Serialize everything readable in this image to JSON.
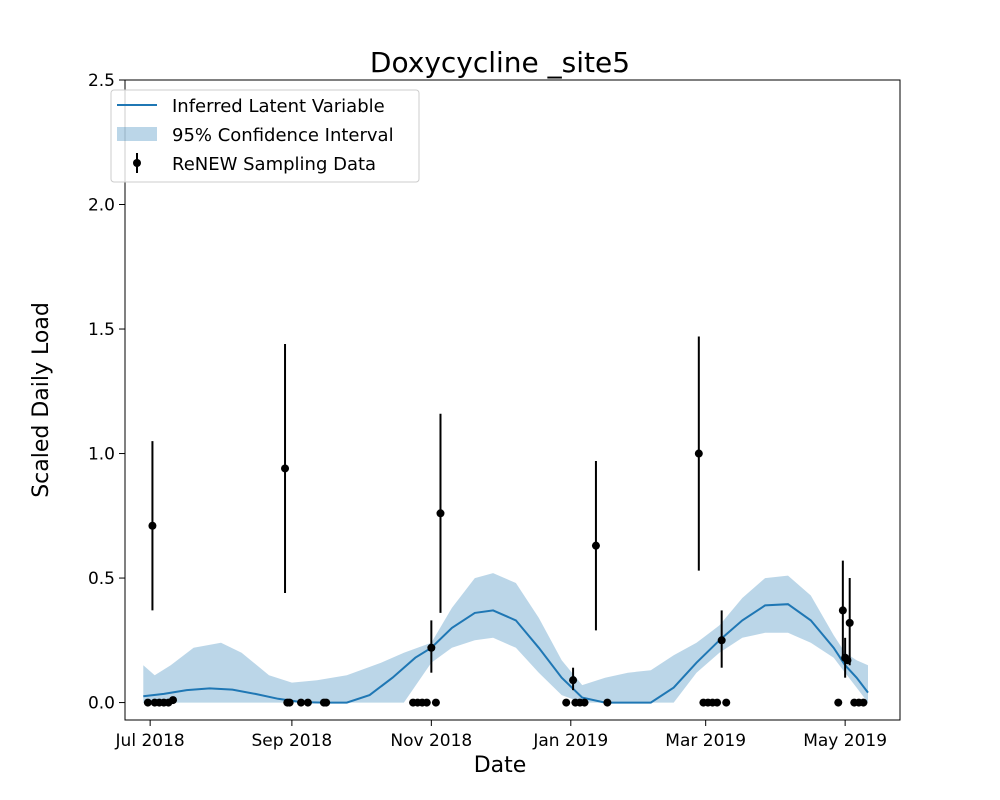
{
  "chart_data": {
    "type": "line",
    "title": "Doxycycline _site5",
    "xlabel": "Date",
    "ylabel": "Scaled Daily Load",
    "xlim": [
      "2018-06-20",
      "2019-05-25"
    ],
    "ylim": [
      -0.07,
      2.5
    ],
    "x_ticks": [
      {
        "date": "2018-07-01",
        "label": "Jul 2018"
      },
      {
        "date": "2018-09-01",
        "label": "Sep 2018"
      },
      {
        "date": "2018-11-01",
        "label": "Nov 2018"
      },
      {
        "date": "2019-01-01",
        "label": "Jan 2019"
      },
      {
        "date": "2019-03-01",
        "label": "Mar 2019"
      },
      {
        "date": "2019-05-01",
        "label": "May 2019"
      }
    ],
    "y_ticks": [
      "0.0",
      "0.5",
      "1.0",
      "1.5",
      "2.0",
      "2.5"
    ],
    "legend_position": "top-left",
    "grid": false,
    "series": [
      {
        "name": "Inferred Latent Variable",
        "kind": "line",
        "color": "#1f77b4",
        "x": [
          "2018-06-28",
          "2018-07-07",
          "2018-07-17",
          "2018-07-27",
          "2018-08-06",
          "2018-08-16",
          "2018-08-26",
          "2018-09-05",
          "2018-09-15",
          "2018-09-25",
          "2018-10-05",
          "2018-10-15",
          "2018-10-25",
          "2018-11-01",
          "2018-11-10",
          "2018-11-20",
          "2018-11-28",
          "2018-12-08",
          "2018-12-18",
          "2018-12-28",
          "2019-01-06",
          "2019-01-16",
          "2019-01-26",
          "2019-02-05",
          "2019-02-15",
          "2019-02-25",
          "2019-03-07",
          "2019-03-17",
          "2019-03-27",
          "2019-04-06",
          "2019-04-16",
          "2019-04-26",
          "2019-05-01",
          "2019-05-06",
          "2019-05-11"
        ],
        "y": [
          0.025,
          0.035,
          0.05,
          0.057,
          0.052,
          0.035,
          0.015,
          0.002,
          0.0,
          0.0,
          0.03,
          0.1,
          0.18,
          0.22,
          0.3,
          0.36,
          0.37,
          0.33,
          0.22,
          0.1,
          0.02,
          0.0,
          0.0,
          0.0,
          0.06,
          0.16,
          0.25,
          0.33,
          0.39,
          0.395,
          0.33,
          0.22,
          0.15,
          0.1,
          0.04
        ]
      },
      {
        "name": "95% Confidence Interval",
        "kind": "band",
        "color": "#1f77b4",
        "opacity": 0.3,
        "x": [
          "2018-06-28",
          "2018-07-03",
          "2018-07-10",
          "2018-07-20",
          "2018-08-01",
          "2018-08-10",
          "2018-08-22",
          "2018-09-01",
          "2018-09-12",
          "2018-09-25",
          "2018-10-01",
          "2018-10-10",
          "2018-10-20",
          "2018-11-01",
          "2018-11-10",
          "2018-11-20",
          "2018-11-28",
          "2018-12-08",
          "2018-12-18",
          "2018-12-28",
          "2019-01-06",
          "2019-01-16",
          "2019-01-26",
          "2019-02-05",
          "2019-02-15",
          "2019-02-25",
          "2019-03-07",
          "2019-03-17",
          "2019-03-27",
          "2019-04-06",
          "2019-04-16",
          "2019-04-26",
          "2019-05-01",
          "2019-05-06",
          "2019-05-11"
        ],
        "upper": [
          0.15,
          0.11,
          0.15,
          0.22,
          0.24,
          0.2,
          0.11,
          0.08,
          0.09,
          0.11,
          0.13,
          0.16,
          0.2,
          0.24,
          0.38,
          0.5,
          0.52,
          0.48,
          0.34,
          0.17,
          0.07,
          0.1,
          0.12,
          0.13,
          0.19,
          0.24,
          0.31,
          0.42,
          0.5,
          0.51,
          0.43,
          0.27,
          0.2,
          0.17,
          0.15
        ],
        "lower": [
          0.0,
          0.0,
          0.0,
          0.0,
          0.0,
          0.0,
          0.0,
          0.0,
          0.0,
          0.0,
          0.0,
          0.0,
          0.0,
          0.16,
          0.22,
          0.25,
          0.26,
          0.22,
          0.12,
          0.03,
          0.0,
          0.0,
          0.0,
          0.0,
          0.0,
          0.12,
          0.2,
          0.26,
          0.28,
          0.28,
          0.24,
          0.18,
          0.12,
          0.06,
          0.0
        ]
      },
      {
        "name": "ReNEW Sampling Data",
        "kind": "errorbar",
        "color": "#000000",
        "points": [
          {
            "x": "2018-06-30",
            "y": 0.0
          },
          {
            "x": "2018-07-02",
            "y": 0.71,
            "lo": 0.37,
            "hi": 1.05
          },
          {
            "x": "2018-07-03",
            "y": 0.0
          },
          {
            "x": "2018-07-05",
            "y": 0.0
          },
          {
            "x": "2018-07-07",
            "y": 0.0
          },
          {
            "x": "2018-07-09",
            "y": 0.0
          },
          {
            "x": "2018-07-11",
            "y": 0.01
          },
          {
            "x": "2018-08-29",
            "y": 0.94,
            "lo": 0.44,
            "hi": 1.44
          },
          {
            "x": "2018-08-30",
            "y": 0.0
          },
          {
            "x": "2018-08-31",
            "y": 0.0
          },
          {
            "x": "2018-09-05",
            "y": 0.0
          },
          {
            "x": "2018-09-08",
            "y": 0.0
          },
          {
            "x": "2018-09-15",
            "y": 0.0
          },
          {
            "x": "2018-09-16",
            "y": 0.0
          },
          {
            "x": "2018-10-24",
            "y": 0.0
          },
          {
            "x": "2018-10-26",
            "y": 0.0
          },
          {
            "x": "2018-10-28",
            "y": 0.0
          },
          {
            "x": "2018-10-30",
            "y": 0.0
          },
          {
            "x": "2018-11-01",
            "y": 0.22,
            "lo": 0.12,
            "hi": 0.33
          },
          {
            "x": "2018-11-03",
            "y": 0.0
          },
          {
            "x": "2018-11-05",
            "y": 0.76,
            "lo": 0.36,
            "hi": 1.16
          },
          {
            "x": "2018-12-30",
            "y": 0.0
          },
          {
            "x": "2019-01-02",
            "y": 0.09,
            "lo": 0.05,
            "hi": 0.14
          },
          {
            "x": "2019-01-03",
            "y": 0.0
          },
          {
            "x": "2019-01-05",
            "y": 0.0
          },
          {
            "x": "2019-01-07",
            "y": 0.0
          },
          {
            "x": "2019-01-12",
            "y": 0.63,
            "lo": 0.29,
            "hi": 0.97
          },
          {
            "x": "2019-01-17",
            "y": 0.0
          },
          {
            "x": "2019-02-26",
            "y": 1.0,
            "lo": 0.53,
            "hi": 1.47
          },
          {
            "x": "2019-02-28",
            "y": 0.0
          },
          {
            "x": "2019-03-02",
            "y": 0.0
          },
          {
            "x": "2019-03-04",
            "y": 0.0
          },
          {
            "x": "2019-03-06",
            "y": 0.0
          },
          {
            "x": "2019-03-08",
            "y": 0.25,
            "lo": 0.14,
            "hi": 0.37
          },
          {
            "x": "2019-03-10",
            "y": 0.0
          },
          {
            "x": "2019-04-28",
            "y": 0.0
          },
          {
            "x": "2019-04-30",
            "y": 0.37,
            "lo": 0.17,
            "hi": 0.57
          },
          {
            "x": "2019-05-01",
            "y": 0.18,
            "lo": 0.1,
            "hi": 0.26
          },
          {
            "x": "2019-05-02",
            "y": 0.17
          },
          {
            "x": "2019-05-03",
            "y": 0.32,
            "lo": 0.15,
            "hi": 0.5
          },
          {
            "x": "2019-05-05",
            "y": 0.0
          },
          {
            "x": "2019-05-07",
            "y": 0.0
          },
          {
            "x": "2019-05-09",
            "y": 0.0
          }
        ]
      }
    ]
  }
}
